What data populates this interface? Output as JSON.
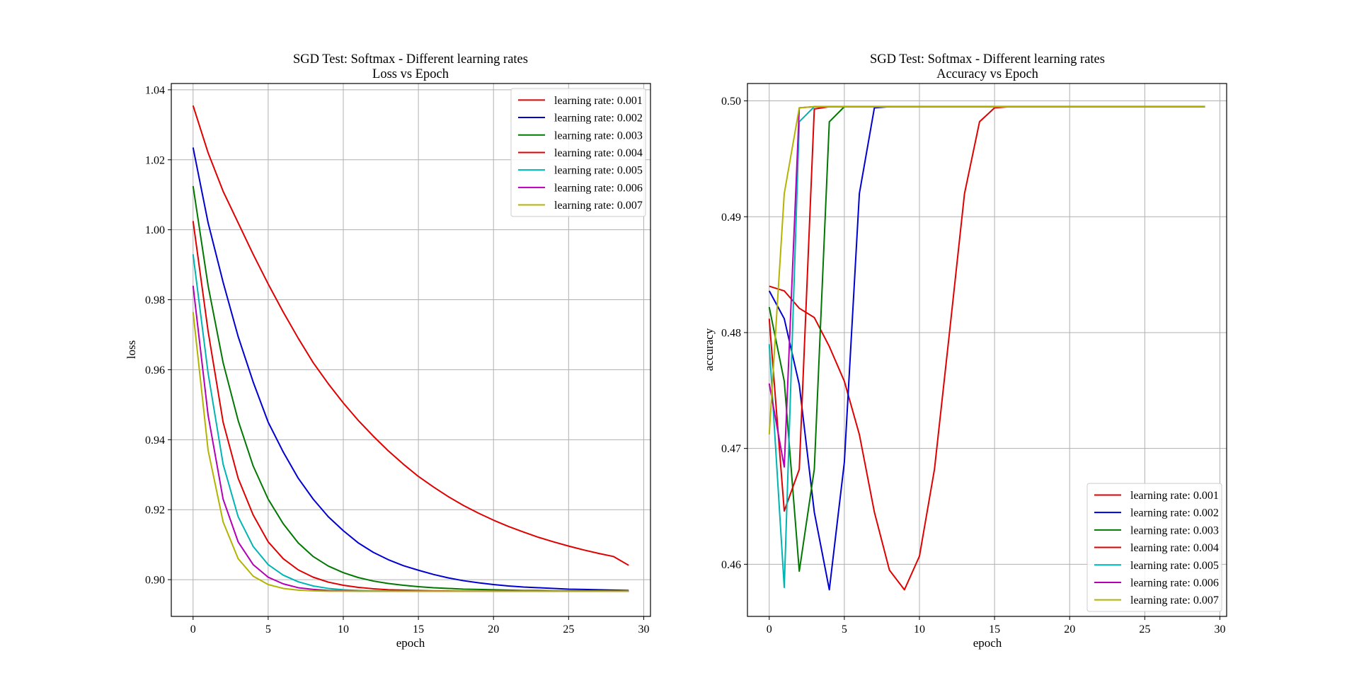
{
  "chart_data": [
    {
      "type": "line",
      "title": "SGD Test: Softmax - Different learning rates",
      "subtitle": "Loss vs Epoch",
      "xlabel": "epoch",
      "ylabel": "loss",
      "xlim": [
        -1.45,
        30.45
      ],
      "ylim": [
        0.8895,
        1.0418
      ],
      "xticks": [
        0,
        5,
        10,
        15,
        20,
        25,
        30
      ],
      "xtick_labels": [
        "0",
        "5",
        "10",
        "15",
        "20",
        "25",
        "30"
      ],
      "yticks": [
        0.9,
        0.92,
        0.94,
        0.96,
        0.98,
        1.0,
        1.02,
        1.04
      ],
      "ytick_labels": [
        "0.90",
        "0.92",
        "0.94",
        "0.96",
        "0.98",
        "1.00",
        "1.02",
        "1.04"
      ],
      "grid": true,
      "legend_loc": "upper right",
      "series": [
        {
          "name": "learning rate: 0.001",
          "color": "#e00000",
          "x": [
            0,
            1,
            2,
            3,
            4,
            5,
            6,
            7,
            8,
            9,
            10,
            11,
            12,
            13,
            14,
            15,
            16,
            17,
            18,
            19,
            20,
            21,
            22,
            23,
            24,
            25,
            26,
            27,
            28,
            29
          ],
          "values": [
            1.0355,
            1.022,
            1.011,
            1.002,
            0.993,
            0.9845,
            0.9765,
            0.969,
            0.962,
            0.956,
            0.9505,
            0.9455,
            0.941,
            0.9368,
            0.933,
            0.9295,
            0.9265,
            0.9237,
            0.9212,
            0.919,
            0.917,
            0.9152,
            0.9136,
            0.9121,
            0.9108,
            0.9096,
            0.9085,
            0.9075,
            0.9066,
            0.9041
          ]
        },
        {
          "name": "learning rate: 0.002",
          "color": "#0000d0",
          "x": [
            0,
            1,
            2,
            3,
            4,
            5,
            6,
            7,
            8,
            9,
            10,
            11,
            12,
            13,
            14,
            15,
            16,
            17,
            18,
            19,
            20,
            21,
            22,
            23,
            24,
            25,
            26,
            27,
            28,
            29
          ],
          "values": [
            1.0235,
            1.002,
            0.985,
            0.9695,
            0.9565,
            0.945,
            0.9365,
            0.929,
            0.923,
            0.918,
            0.914,
            0.9105,
            0.9078,
            0.9057,
            0.904,
            0.9027,
            0.9015,
            0.9005,
            0.8997,
            0.8991,
            0.8986,
            0.8982,
            0.8979,
            0.8977,
            0.8975,
            0.8973,
            0.8972,
            0.8971,
            0.897,
            0.8969
          ]
        },
        {
          "name": "learning rate: 0.003",
          "color": "#007800",
          "x": [
            0,
            1,
            2,
            3,
            4,
            5,
            6,
            7,
            8,
            9,
            10,
            11,
            12,
            13,
            14,
            15,
            16,
            17,
            18,
            19,
            20,
            21,
            22,
            23,
            24,
            25,
            26,
            27,
            28,
            29
          ],
          "values": [
            1.0125,
            0.984,
            0.962,
            0.9455,
            0.9325,
            0.923,
            0.916,
            0.9105,
            0.9066,
            0.9039,
            0.902,
            0.9006,
            0.8996,
            0.8989,
            0.8984,
            0.898,
            0.8977,
            0.8975,
            0.8973,
            0.8972,
            0.8971,
            0.897,
            0.8969,
            0.8969,
            0.8968,
            0.8968,
            0.8968,
            0.8968,
            0.8967,
            0.8967
          ]
        },
        {
          "name": "learning rate: 0.004",
          "color": "#e00000",
          "x": [
            0,
            1,
            2,
            3,
            4,
            5,
            6,
            7,
            8,
            9,
            10,
            11,
            12,
            13,
            14,
            15,
            16,
            17,
            18,
            19,
            20,
            21,
            22,
            23,
            24,
            25,
            26,
            27,
            28,
            29
          ],
          "values": [
            1.0025,
            0.971,
            0.945,
            0.929,
            0.9185,
            0.9108,
            0.906,
            0.9028,
            0.9007,
            0.8993,
            0.8984,
            0.8978,
            0.8974,
            0.8971,
            0.897,
            0.8969,
            0.8968,
            0.8968,
            0.8967,
            0.8967,
            0.8967,
            0.8967,
            0.8967,
            0.8967,
            0.8967,
            0.8967,
            0.8967,
            0.8967,
            0.8967,
            0.8967
          ]
        },
        {
          "name": "learning rate: 0.005",
          "color": "#00b4b4",
          "x": [
            0,
            1,
            2,
            3,
            4,
            5,
            6,
            7,
            8,
            9,
            10,
            11,
            12,
            13,
            14,
            15,
            16,
            17,
            18,
            19,
            20,
            21,
            22,
            23,
            24,
            25,
            26,
            27,
            28,
            29
          ],
          "values": [
            0.993,
            0.959,
            0.933,
            0.918,
            0.9095,
            0.9043,
            0.9013,
            0.8994,
            0.8982,
            0.8975,
            0.8971,
            0.8969,
            0.8968,
            0.8967,
            0.8967,
            0.8967,
            0.8967,
            0.8967,
            0.8967,
            0.8967,
            0.8967,
            0.8967,
            0.8967,
            0.8967,
            0.8967,
            0.8967,
            0.8967,
            0.8967,
            0.8967,
            0.8967
          ]
        },
        {
          "name": "learning rate: 0.006",
          "color": "#b400b4",
          "x": [
            0,
            1,
            2,
            3,
            4,
            5,
            6,
            7,
            8,
            9,
            10,
            11,
            12,
            13,
            14,
            15,
            16,
            17,
            18,
            19,
            20,
            21,
            22,
            23,
            24,
            25,
            26,
            27,
            28,
            29
          ],
          "values": [
            0.984,
            0.947,
            0.923,
            0.9108,
            0.9043,
            0.9007,
            0.8988,
            0.8977,
            0.8972,
            0.8969,
            0.8968,
            0.8967,
            0.8967,
            0.8967,
            0.8967,
            0.8967,
            0.8967,
            0.8967,
            0.8967,
            0.8967,
            0.8967,
            0.8967,
            0.8967,
            0.8967,
            0.8967,
            0.8967,
            0.8967,
            0.8967,
            0.8967,
            0.8967
          ]
        },
        {
          "name": "learning rate: 0.007",
          "color": "#b4b400",
          "x": [
            0,
            1,
            2,
            3,
            4,
            5,
            6,
            7,
            8,
            9,
            10,
            11,
            12,
            13,
            14,
            15,
            16,
            17,
            18,
            19,
            20,
            21,
            22,
            23,
            24,
            25,
            26,
            27,
            28,
            29
          ],
          "values": [
            0.9765,
            0.937,
            0.9165,
            0.906,
            0.901,
            0.8986,
            0.8975,
            0.897,
            0.8968,
            0.8967,
            0.8967,
            0.8967,
            0.8967,
            0.8967,
            0.8967,
            0.8967,
            0.8967,
            0.8967,
            0.8967,
            0.8967,
            0.8967,
            0.8967,
            0.8967,
            0.8967,
            0.8967,
            0.8967,
            0.8967,
            0.8967,
            0.8967,
            0.8967
          ]
        }
      ]
    },
    {
      "type": "line",
      "title": "SGD Test: Softmax - Different learning rates",
      "subtitle": "Accuracy vs Epoch",
      "xlabel": "epoch",
      "ylabel": "accuracy",
      "xlim": [
        -1.45,
        30.45
      ],
      "ylim": [
        0.4555,
        0.5015
      ],
      "xticks": [
        0,
        5,
        10,
        15,
        20,
        25,
        30
      ],
      "xtick_labels": [
        "0",
        "5",
        "10",
        "15",
        "20",
        "25",
        "30"
      ],
      "yticks": [
        0.46,
        0.47,
        0.48,
        0.49,
        0.5
      ],
      "ytick_labels": [
        "0.46",
        "0.47",
        "0.48",
        "0.49",
        "0.50"
      ],
      "grid": true,
      "legend_loc": "lower right",
      "series": [
        {
          "name": "learning rate: 0.001",
          "color": "#e00000",
          "x": [
            0,
            1,
            2,
            3,
            4,
            5,
            6,
            7,
            8,
            9,
            10,
            11,
            12,
            13,
            14,
            15,
            16,
            17,
            18,
            19,
            20,
            21,
            22,
            23,
            24,
            25,
            26,
            27,
            28,
            29
          ],
          "values": [
            0.484,
            0.4836,
            0.4821,
            0.4813,
            0.4788,
            0.4758,
            0.4712,
            0.4645,
            0.4595,
            0.4578,
            0.4607,
            0.4682,
            0.48,
            0.492,
            0.4982,
            0.4994,
            0.4995,
            0.4995,
            0.4995,
            0.4995,
            0.4995,
            0.4995,
            0.4995,
            0.4995,
            0.4995,
            0.4995,
            0.4995,
            0.4995,
            0.4995,
            0.4995
          ]
        },
        {
          "name": "learning rate: 0.002",
          "color": "#0000d0",
          "x": [
            0,
            1,
            2,
            3,
            4,
            5,
            6,
            7,
            8,
            9,
            10,
            11,
            12,
            13,
            14,
            15,
            16,
            17,
            18,
            19,
            20,
            21,
            22,
            23,
            24,
            25,
            26,
            27,
            28,
            29
          ],
          "values": [
            0.4836,
            0.4812,
            0.4755,
            0.4645,
            0.4578,
            0.4688,
            0.492,
            0.4994,
            0.4995,
            0.4995,
            0.4995,
            0.4995,
            0.4995,
            0.4995,
            0.4995,
            0.4995,
            0.4995,
            0.4995,
            0.4995,
            0.4995,
            0.4995,
            0.4995,
            0.4995,
            0.4995,
            0.4995,
            0.4995,
            0.4995,
            0.4995,
            0.4995,
            0.4995
          ]
        },
        {
          "name": "learning rate: 0.003",
          "color": "#007800",
          "x": [
            0,
            1,
            2,
            3,
            4,
            5,
            6,
            7,
            8,
            9,
            10,
            11,
            12,
            13,
            14,
            15,
            16,
            17,
            18,
            19,
            20,
            21,
            22,
            23,
            24,
            25,
            26,
            27,
            28,
            29
          ],
          "values": [
            0.4822,
            0.4758,
            0.4594,
            0.4682,
            0.4982,
            0.4995,
            0.4995,
            0.4995,
            0.4995,
            0.4995,
            0.4995,
            0.4995,
            0.4995,
            0.4995,
            0.4995,
            0.4995,
            0.4995,
            0.4995,
            0.4995,
            0.4995,
            0.4995,
            0.4995,
            0.4995,
            0.4995,
            0.4995,
            0.4995,
            0.4995,
            0.4995,
            0.4995,
            0.4995
          ]
        },
        {
          "name": "learning rate: 0.004",
          "color": "#e00000",
          "x": [
            0,
            1,
            2,
            3,
            4,
            5,
            6,
            7,
            8,
            9,
            10,
            11,
            12,
            13,
            14,
            15,
            16,
            17,
            18,
            19,
            20,
            21,
            22,
            23,
            24,
            25,
            26,
            27,
            28,
            29
          ],
          "values": [
            0.4812,
            0.4646,
            0.4682,
            0.4993,
            0.4995,
            0.4995,
            0.4995,
            0.4995,
            0.4995,
            0.4995,
            0.4995,
            0.4995,
            0.4995,
            0.4995,
            0.4995,
            0.4995,
            0.4995,
            0.4995,
            0.4995,
            0.4995,
            0.4995,
            0.4995,
            0.4995,
            0.4995,
            0.4995,
            0.4995,
            0.4995,
            0.4995,
            0.4995,
            0.4995
          ]
        },
        {
          "name": "learning rate: 0.005",
          "color": "#00b4b4",
          "x": [
            0,
            1,
            2,
            3,
            4,
            5,
            6,
            7,
            8,
            9,
            10,
            11,
            12,
            13,
            14,
            15,
            16,
            17,
            18,
            19,
            20,
            21,
            22,
            23,
            24,
            25,
            26,
            27,
            28,
            29
          ],
          "values": [
            0.479,
            0.458,
            0.4982,
            0.4995,
            0.4995,
            0.4995,
            0.4995,
            0.4995,
            0.4995,
            0.4995,
            0.4995,
            0.4995,
            0.4995,
            0.4995,
            0.4995,
            0.4995,
            0.4995,
            0.4995,
            0.4995,
            0.4995,
            0.4995,
            0.4995,
            0.4995,
            0.4995,
            0.4995,
            0.4995,
            0.4995,
            0.4995,
            0.4995,
            0.4995
          ]
        },
        {
          "name": "learning rate: 0.006",
          "color": "#b400b4",
          "x": [
            0,
            1,
            2,
            3,
            4,
            5,
            6,
            7,
            8,
            9,
            10,
            11,
            12,
            13,
            14,
            15,
            16,
            17,
            18,
            19,
            20,
            21,
            22,
            23,
            24,
            25,
            26,
            27,
            28,
            29
          ],
          "values": [
            0.4756,
            0.4684,
            0.4994,
            0.4995,
            0.4995,
            0.4995,
            0.4995,
            0.4995,
            0.4995,
            0.4995,
            0.4995,
            0.4995,
            0.4995,
            0.4995,
            0.4995,
            0.4995,
            0.4995,
            0.4995,
            0.4995,
            0.4995,
            0.4995,
            0.4995,
            0.4995,
            0.4995,
            0.4995,
            0.4995,
            0.4995,
            0.4995,
            0.4995,
            0.4995
          ]
        },
        {
          "name": "learning rate: 0.007",
          "color": "#b4b400",
          "x": [
            0,
            1,
            2,
            3,
            4,
            5,
            6,
            7,
            8,
            9,
            10,
            11,
            12,
            13,
            14,
            15,
            16,
            17,
            18,
            19,
            20,
            21,
            22,
            23,
            24,
            25,
            26,
            27,
            28,
            29
          ],
          "values": [
            0.4712,
            0.492,
            0.4994,
            0.4995,
            0.4995,
            0.4995,
            0.4995,
            0.4995,
            0.4995,
            0.4995,
            0.4995,
            0.4995,
            0.4995,
            0.4995,
            0.4995,
            0.4995,
            0.4995,
            0.4995,
            0.4995,
            0.4995,
            0.4995,
            0.4995,
            0.4995,
            0.4995,
            0.4995,
            0.4995,
            0.4995,
            0.4995,
            0.4995,
            0.4995
          ]
        }
      ]
    }
  ]
}
